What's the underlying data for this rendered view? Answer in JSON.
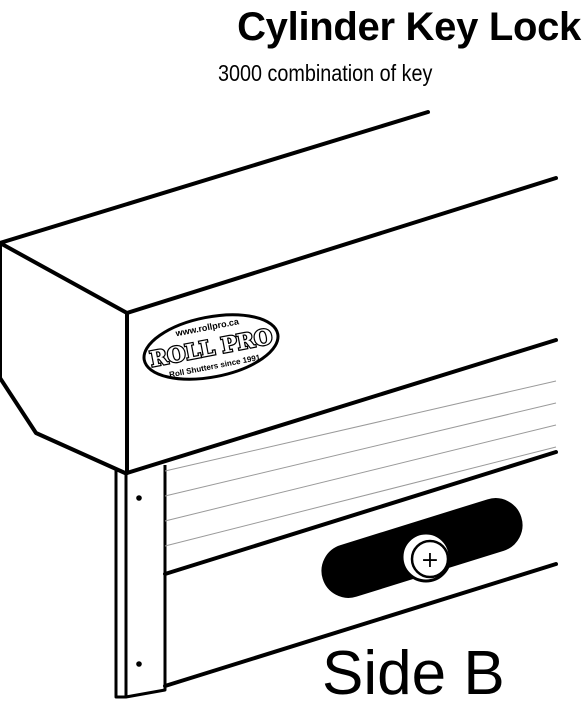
{
  "header": {
    "title": "Cylinder Key Lock",
    "subtitle": "3000 combination of key"
  },
  "logo": {
    "url_text": "www.rollpro.ca",
    "brand": "ROLL PRO",
    "tagline": "Roll Shutters since 1991"
  },
  "lock": {
    "symbol": "+"
  },
  "side_label": "Side B",
  "colors": {
    "ink": "#000000",
    "paper": "#ffffff",
    "slat_lines": "#9a9a9a"
  }
}
